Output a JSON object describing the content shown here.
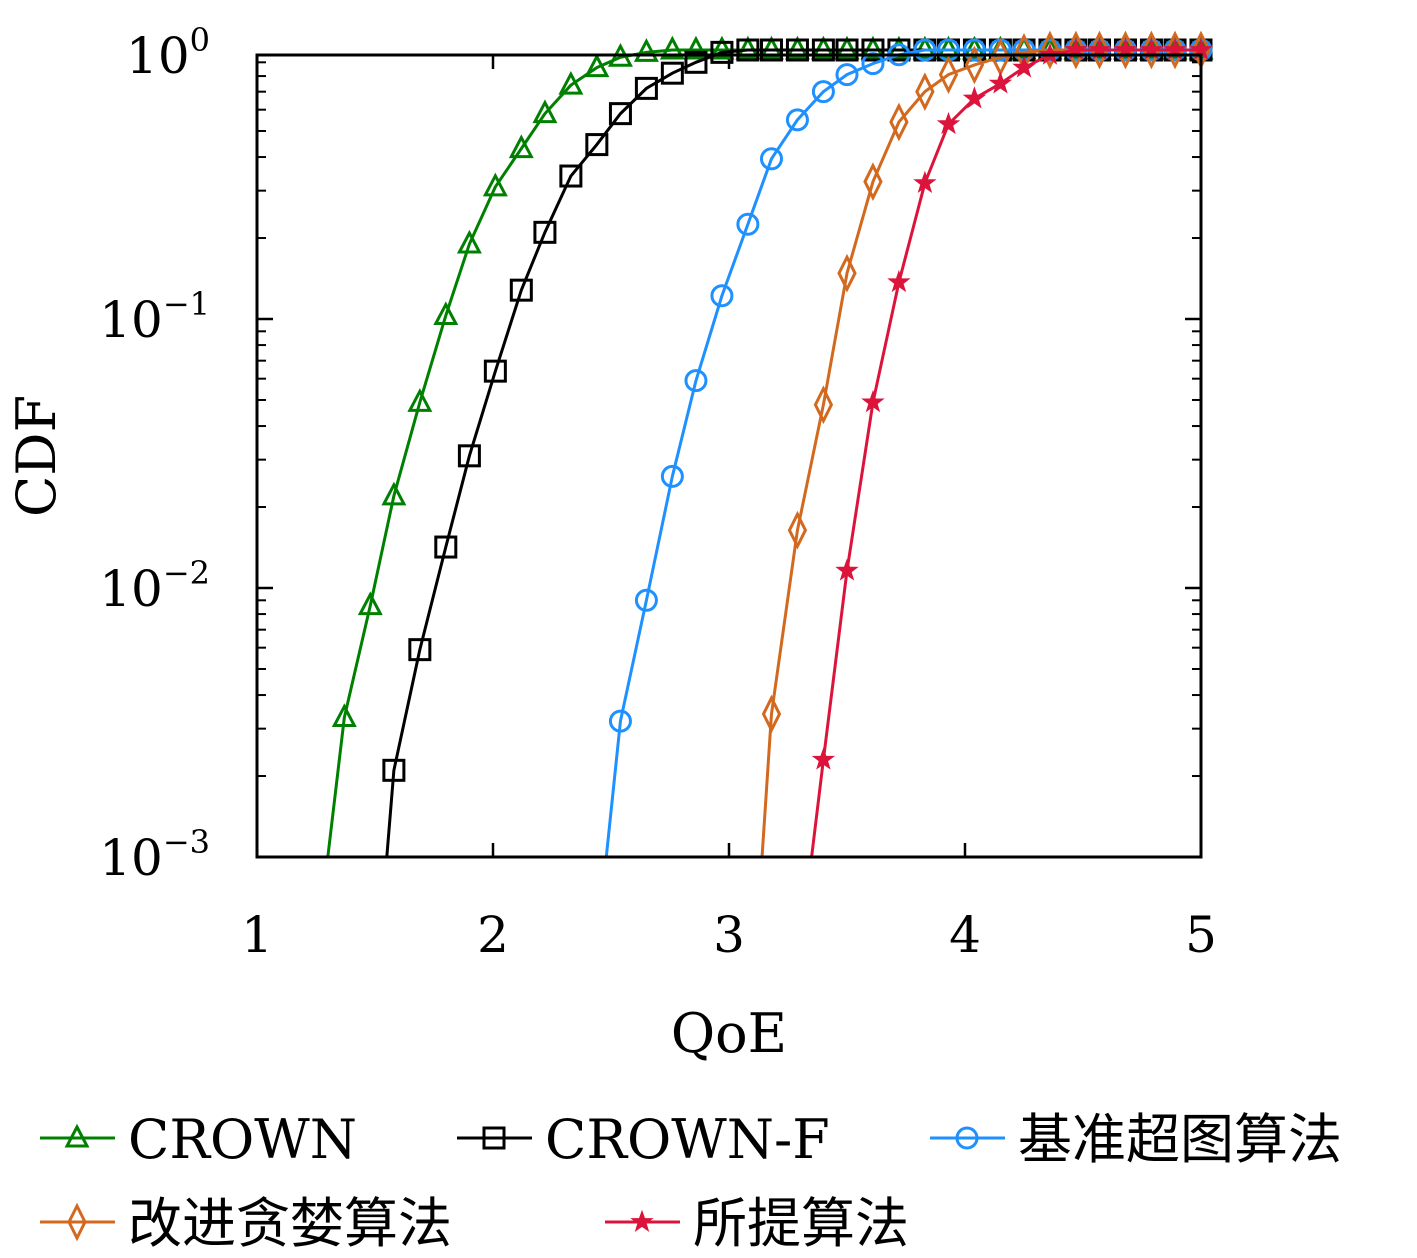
{
  "chart_data": {
    "type": "line",
    "title": "",
    "xlabel": "QoE",
    "ylabel": "CDF",
    "xlim": [
      1,
      5
    ],
    "ylim": [
      0.001,
      1
    ],
    "yscale": "log",
    "grid": false,
    "legend_position": "bottom",
    "x_ticks": [
      "1",
      "2",
      "3",
      "4",
      "5"
    ],
    "x_tick_values": [
      1,
      2,
      3,
      4,
      5
    ],
    "y_ticks": [
      {
        "base": "10",
        "exp": "0",
        "value": 1
      },
      {
        "base": "10",
        "exp": "−1",
        "value": 0.1
      },
      {
        "base": "10",
        "exp": "−2",
        "value": 0.01
      },
      {
        "base": "10",
        "exp": "−3",
        "value": 0.001
      }
    ],
    "x": [
      1.37,
      1.48,
      1.58,
      1.69,
      1.8,
      1.9,
      2.01,
      2.12,
      2.22,
      2.33,
      2.44,
      2.54,
      2.65,
      2.76,
      2.86,
      2.97,
      3.08,
      3.18,
      3.29,
      3.4,
      3.5,
      3.61,
      3.72,
      3.83,
      3.93,
      4.04,
      4.15,
      4.25,
      4.36,
      4.47,
      4.57,
      4.68,
      4.79,
      4.89,
      5.0
    ],
    "series": [
      {
        "name": "CROWN",
        "color": "#008000",
        "marker": "triangle",
        "start_x": 1.3,
        "y": [
          0.0033,
          0.0086,
          0.022,
          0.049,
          0.103,
          0.19,
          0.31,
          0.43,
          0.58,
          0.74,
          0.86,
          0.94,
          0.98,
          1,
          1,
          1,
          1,
          1,
          1,
          1,
          1,
          1,
          1,
          1,
          1,
          1,
          1,
          1,
          1,
          1,
          1,
          1,
          1,
          1,
          1
        ]
      },
      {
        "name": "CROWN-F",
        "color": "#000000",
        "marker": "square",
        "start_x": 1.55,
        "y": [
          null,
          null,
          0.0021,
          0.0059,
          0.0142,
          0.031,
          0.064,
          0.128,
          0.21,
          0.34,
          0.445,
          0.58,
          0.72,
          0.82,
          0.9,
          0.98,
          1,
          1,
          1,
          1,
          1,
          1,
          1,
          1,
          1,
          1,
          1,
          1,
          1,
          1,
          1,
          1,
          1,
          1,
          1
        ]
      },
      {
        "name": "基准超图算法",
        "color": "#1E90FF",
        "marker": "circle",
        "start_x": 2.48,
        "y": [
          null,
          null,
          null,
          null,
          null,
          null,
          null,
          null,
          null,
          null,
          null,
          0.0032,
          0.009,
          0.026,
          0.059,
          0.122,
          0.225,
          0.394,
          0.55,
          0.7,
          0.81,
          0.89,
          0.96,
          1,
          1,
          1,
          1,
          1,
          1,
          1,
          1,
          1,
          1,
          1,
          1
        ]
      },
      {
        "name": "改进贪婪算法",
        "color": "#D2691E",
        "marker": "diamond",
        "start_x": 3.14,
        "y": [
          null,
          null,
          null,
          null,
          null,
          null,
          null,
          null,
          null,
          null,
          null,
          null,
          null,
          null,
          null,
          null,
          null,
          0.0034,
          0.0164,
          0.048,
          0.148,
          0.324,
          0.54,
          0.7,
          0.81,
          0.88,
          0.94,
          0.98,
          1,
          1,
          1,
          1,
          1,
          1,
          1
        ]
      },
      {
        "name": "所提算法",
        "color": "#DC143C",
        "marker": "star",
        "start_x": 3.35,
        "y": [
          null,
          null,
          null,
          null,
          null,
          null,
          null,
          null,
          null,
          null,
          null,
          null,
          null,
          null,
          null,
          null,
          null,
          null,
          null,
          0.0023,
          0.0116,
          0.049,
          0.137,
          0.32,
          0.53,
          0.66,
          0.75,
          0.86,
          0.96,
          1,
          1,
          1,
          1,
          1,
          1
        ]
      }
    ]
  }
}
